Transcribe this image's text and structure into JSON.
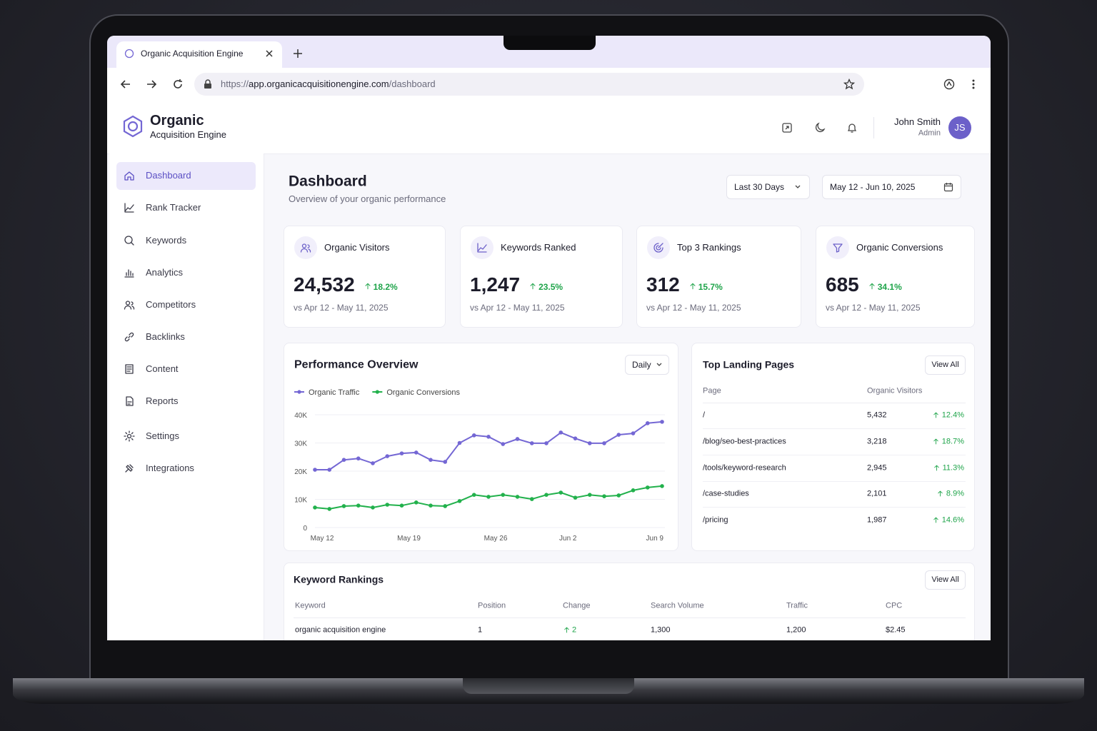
{
  "browser": {
    "tab_title": "Organic Acquisition Engine",
    "url": {
      "scheme": "https://",
      "host": "app.organicacquisitionengine.com",
      "path": "/dashboard"
    }
  },
  "app": {
    "brand_name": "Organic",
    "brand_tagline": "Acquisition Engine",
    "user": {
      "name": "John Smith",
      "role": "Admin",
      "initials": "JS"
    }
  },
  "sidebar": {
    "active": 0,
    "items": [
      "Dashboard",
      "Rank Tracker",
      "Keywords",
      "Analytics",
      "Competitors",
      "Backlinks",
      "Content",
      "Reports",
      "Settings",
      "Integrations"
    ]
  },
  "header": {
    "title": "Dashboard",
    "subtitle": "Overview of your organic performance",
    "range": "Last 30 Days",
    "dates": "May 12 - Jun 10, 2025"
  },
  "kpis": [
    {
      "label": "Organic Visitors",
      "value": "24,532",
      "change": "18.2%",
      "compare": "vs Apr 12 - May 11, 2025"
    },
    {
      "label": "Keywords Ranked",
      "value": "1,247",
      "change": "23.5%",
      "compare": "vs Apr 12 - May 11, 2025"
    },
    {
      "label": "Top 3 Rankings",
      "value": "312",
      "change": "15.7%",
      "compare": "vs Apr 12 - May 11, 2025"
    },
    {
      "label": "Organic Conversions",
      "value": "685",
      "change": "34.1%",
      "compare": "vs Apr 12 - May 11, 2025"
    }
  ],
  "chart_data": {
    "type": "line",
    "title": "Performance Overview",
    "categories": [
      "May 12",
      null,
      null,
      null,
      null,
      null,
      "May 19",
      null,
      null,
      null,
      null,
      null,
      "May 26",
      null,
      null,
      null,
      null,
      "Jun 2",
      null,
      null,
      null,
      null,
      null,
      "Jun 9",
      null
    ],
    "series": [
      {
        "name": "Organic Traffic",
        "color": "#7467d4",
        "values": [
          20500,
          20500,
          24000,
          24500,
          22800,
          25300,
          26300,
          26600,
          24000,
          23300,
          30000,
          32700,
          32200,
          29600,
          31400,
          29900,
          29900,
          33700,
          31600,
          29900,
          29900,
          32900,
          33400,
          37000,
          37500
        ]
      },
      {
        "name": "Organic Conversions",
        "color": "#22b14c",
        "values": [
          7100,
          6600,
          7600,
          7800,
          7100,
          8100,
          7800,
          8900,
          7800,
          7600,
          9400,
          11600,
          10900,
          11600,
          10900,
          10100,
          11600,
          12400,
          10600,
          11600,
          11100,
          11400,
          13200,
          14200,
          14700
        ]
      }
    ],
    "ylim": [
      0,
      40000
    ],
    "yticks": [
      0,
      {
        "value": 10000,
        "label": "10K"
      },
      {
        "value": 20000,
        "label": "20K"
      },
      {
        "value": 30000,
        "label": "30K"
      },
      {
        "value": 40000,
        "label": "40K"
      }
    ],
    "grid": true
  },
  "chart_controls": {
    "period": "Daily"
  },
  "landing_pages": {
    "title": "Top Landing Pages",
    "action": "View All",
    "columns": [
      "Page",
      "Organic Visitors"
    ],
    "rows": [
      [
        "/",
        "5,432",
        "12.4%"
      ],
      [
        "/blog/seo-best-practices",
        "3,218",
        "18.7%"
      ],
      [
        "/tools/keyword-research",
        "2,945",
        "11.3%"
      ],
      [
        "/case-studies",
        "2,101",
        "8.9%"
      ],
      [
        "/pricing",
        "1,987",
        "14.6%"
      ]
    ]
  },
  "keyword_rankings": {
    "title": "Keyword Rankings",
    "action": "View All",
    "columns": [
      "Keyword",
      "Position",
      "Change",
      "Search Volume",
      "Traffic",
      "CPC"
    ],
    "rows": [
      [
        "organic acquisition engine",
        "1",
        "2",
        "1,300",
        "1,200",
        "$2.45"
      ]
    ]
  }
}
